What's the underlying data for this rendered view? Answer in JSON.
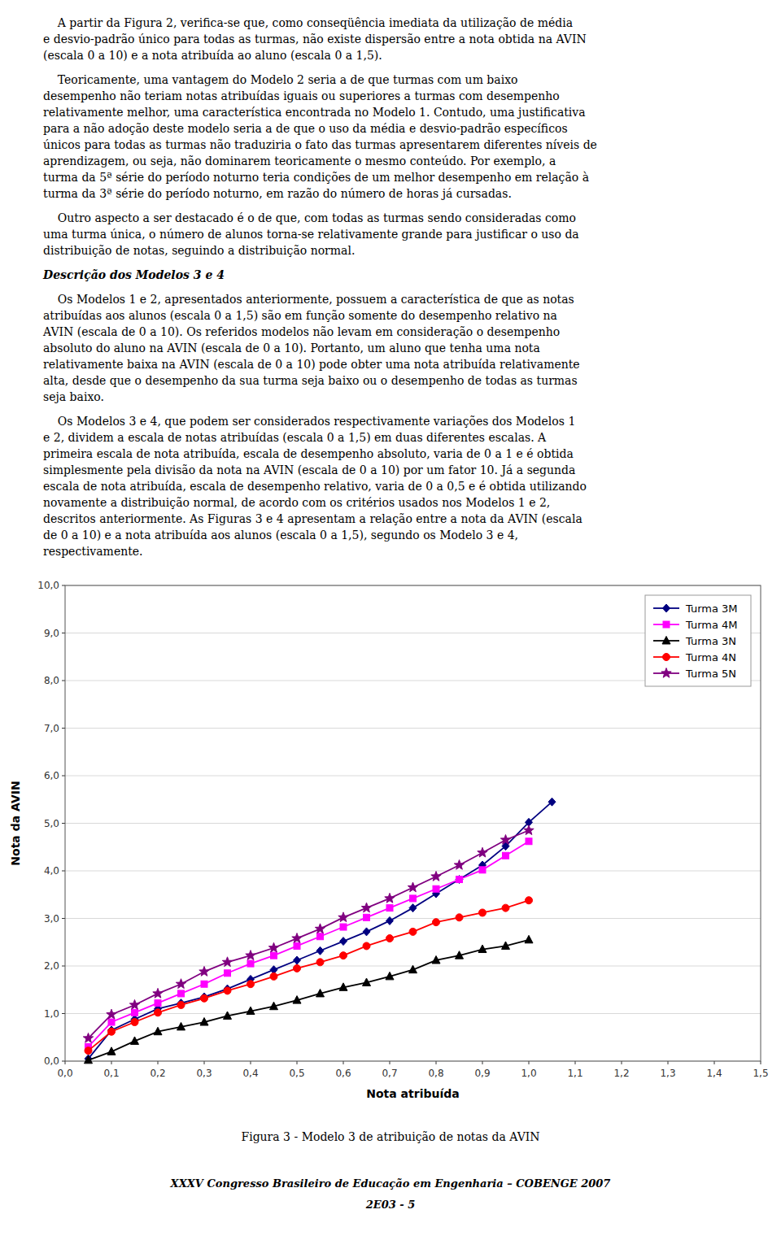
{
  "chart_data": {
    "type": "line",
    "title": "Figura 3 - Modelo 3 de atribuição de notas da AVIN",
    "x_label": "Nota atribuída",
    "y_label": "Nota da AVIN",
    "xlim": [
      0.0,
      1.5
    ],
    "ylim": [
      0.0,
      10.0
    ],
    "xticks": [
      {
        "value": 0.0,
        "label": "0,0"
      },
      {
        "value": 0.1,
        "label": "0,1"
      },
      {
        "value": 0.2,
        "label": "0,2"
      },
      {
        "value": 0.3,
        "label": "0,3"
      },
      {
        "value": 0.4,
        "label": "0,4"
      },
      {
        "value": 0.5,
        "label": "0,5"
      },
      {
        "value": 0.6,
        "label": "0,6"
      },
      {
        "value": 0.7,
        "label": "0,7"
      },
      {
        "value": 0.8,
        "label": "0,8"
      },
      {
        "value": 0.9,
        "label": "0,9"
      },
      {
        "value": 1.0,
        "label": "1,0"
      },
      {
        "value": 1.1,
        "label": "1,1"
      },
      {
        "value": 1.2,
        "label": "1,2"
      },
      {
        "value": 1.3,
        "label": "1,3"
      },
      {
        "value": 1.4,
        "label": "1,4"
      },
      {
        "value": 1.5,
        "label": "1,5"
      }
    ],
    "yticks": [
      {
        "value": 0.0,
        "label": "0,0"
      },
      {
        "value": 1.0,
        "label": "1,0"
      },
      {
        "value": 2.0,
        "label": "2,0"
      },
      {
        "value": 3.0,
        "label": "3,0"
      },
      {
        "value": 4.0,
        "label": "4,0"
      },
      {
        "value": 5.0,
        "label": "5,0"
      },
      {
        "value": 6.0,
        "label": "6,0"
      },
      {
        "value": 7.0,
        "label": "7,0"
      },
      {
        "value": 8.0,
        "label": "8,0"
      },
      {
        "value": 9.0,
        "label": "9,0"
      },
      {
        "value": 10.0,
        "label": "10,0"
      }
    ],
    "grid": "y",
    "legend": "upper right",
    "series": [
      {
        "name": "Turma 3M",
        "color": "#000080",
        "marker": "diamond",
        "x": [
          0.05,
          0.1,
          0.15,
          0.2,
          0.25,
          0.3,
          0.35,
          0.4,
          0.45,
          0.5,
          0.55,
          0.6,
          0.65,
          0.7,
          0.75,
          0.8,
          0.85,
          0.9,
          0.95,
          1.0,
          1.05
        ],
        "values": [
          0.05,
          0.65,
          0.88,
          1.1,
          1.22,
          1.35,
          1.52,
          1.72,
          1.92,
          2.12,
          2.32,
          2.52,
          2.72,
          2.95,
          3.22,
          3.52,
          3.82,
          4.12,
          4.52,
          5.02,
          5.45
        ]
      },
      {
        "name": "Turma 4M",
        "color": "#FF00FF",
        "marker": "square",
        "x": [
          0.05,
          0.1,
          0.15,
          0.2,
          0.25,
          0.3,
          0.35,
          0.4,
          0.45,
          0.5,
          0.55,
          0.6,
          0.65,
          0.7,
          0.75,
          0.8,
          0.85,
          0.9,
          0.95,
          1.0
        ],
        "values": [
          0.3,
          0.82,
          1.02,
          1.22,
          1.42,
          1.62,
          1.85,
          2.05,
          2.22,
          2.42,
          2.62,
          2.82,
          3.02,
          3.22,
          3.42,
          3.62,
          3.82,
          4.02,
          4.32,
          4.62
        ]
      },
      {
        "name": "Turma 3N",
        "color": "#000000",
        "marker": "triangle",
        "x": [
          0.05,
          0.1,
          0.15,
          0.2,
          0.25,
          0.3,
          0.35,
          0.4,
          0.45,
          0.5,
          0.55,
          0.6,
          0.65,
          0.7,
          0.75,
          0.8,
          0.85,
          0.9,
          0.95,
          1.0
        ],
        "values": [
          0.02,
          0.2,
          0.42,
          0.62,
          0.72,
          0.82,
          0.95,
          1.05,
          1.15,
          1.28,
          1.42,
          1.55,
          1.65,
          1.78,
          1.92,
          2.12,
          2.22,
          2.35,
          2.42,
          2.55
        ]
      },
      {
        "name": "Turma 4N",
        "color": "#FF0000",
        "marker": "circle",
        "x": [
          0.05,
          0.1,
          0.15,
          0.2,
          0.25,
          0.3,
          0.35,
          0.4,
          0.45,
          0.5,
          0.55,
          0.6,
          0.65,
          0.7,
          0.75,
          0.8,
          0.85,
          0.9,
          0.95,
          1.0
        ],
        "values": [
          0.22,
          0.62,
          0.82,
          1.02,
          1.18,
          1.32,
          1.48,
          1.62,
          1.78,
          1.95,
          2.08,
          2.22,
          2.42,
          2.58,
          2.72,
          2.92,
          3.02,
          3.12,
          3.22,
          3.38
        ]
      },
      {
        "name": "Turma 5N",
        "color": "#800080",
        "marker": "star",
        "x": [
          0.05,
          0.1,
          0.15,
          0.2,
          0.25,
          0.3,
          0.35,
          0.4,
          0.45,
          0.5,
          0.55,
          0.6,
          0.65,
          0.7,
          0.75,
          0.8,
          0.85,
          0.9,
          0.95,
          1.0
        ],
        "values": [
          0.48,
          0.98,
          1.18,
          1.42,
          1.62,
          1.88,
          2.08,
          2.22,
          2.38,
          2.58,
          2.78,
          3.02,
          3.22,
          3.42,
          3.65,
          3.88,
          4.12,
          4.38,
          4.65,
          4.85
        ]
      }
    ]
  },
  "page_text": {
    "paragraphs_before": [
      "    A partir da Figura 2, verifica-se que, como conseqüência imediata da utilização de média\ne desvio-padrão único para todas as turmas, não existe dispersão entre a nota obtida na AVIN\n(escala 0 a 10) e a nota atribuída ao aluno (escala 0 a 1,5).",
      "    Teoricamente, uma vantagem do Modelo 2 seria a de que turmas com um baixo\ndesempenho não teriam notas atribuídas iguais ou superiores a turmas com desempenho\nrelativamente melhor, uma característica encontrada no Modelo 1. Contudo, uma justificativa\npara a não adoção deste modelo seria a de que o uso da média e desvio-padrão específicos\núnicos para todas as turmas não traduziria o fato das turmas apresentarem diferentes níveis de\naprendizagem, ou seja, não dominarem teoricamente o mesmo conteúdo. Por exemplo, a\nturma da 5ª série do período noturno teria condições de um melhor desempenho em relação à\nturma da 3ª série do período noturno, em razão do número de horas já cursadas.",
      "    Outro aspecto a ser destacado é o de que, com todas as turmas sendo consideradas como\numa turma única, o número de alunos torna-se relativamente grande para justificar o uso da\ndistribuição de notas, seguindo a distribuição normal."
    ],
    "section_header": "Descrição dos Modelos 3 e 4",
    "paragraphs_after": [
      "    Os Modelos 1 e 2, apresentados anteriormente, possuem a característica de que as notas\natribuídas aos alunos (escala 0 a 1,5) são em função somente do desempenho relativo na\nAVIN (escala de 0 a 10). Os referidos modelos não levam em consideração o desempenho\nabsoluto do aluno na AVIN (escala de 0 a 10). Portanto, um aluno que tenha uma nota\nrelativamente baixa na AVIN (escala de 0 a 10) pode obter uma nota atribuída relativamente\nalta, desde que o desempenho da sua turma seja baixo ou o desempenho de todas as turmas\nseja baixo.",
      "    Os Modelos 3 e 4, que podem ser considerados respectivamente variações dos Modelos 1\ne 2, dividem a escala de notas atribuídas (escala 0 a 1,5) em duas diferentes escalas. A\nprimeira escala de nota atribuída, escala de desempenho absoluto, varia de 0 a 1 e é obtida\nsimplesmente pela divisão da nota na AVIN (escala de 0 a 10) por um fator 10. Já a segunda\nescala de nota atribuída, escala de desempenho relativo, varia de 0 a 0,5 e é obtida utilizando\nnovamente a distribuição normal, de acordo com os critérios usados nos Modelos 1 e 2,\ndescritos anteriormente. As Figuras 3 e 4 apresentam a relação entre a nota da AVIN (escala\nde 0 a 10) e a nota atribuída aos alunos (escala 0 a 1,5), segundo os Modelo 3 e 4,\nrespectivamente."
    ],
    "footers": [
      "XXXV Congresso Brasileiro de Educação em Engenharia – COBENGE 2007",
      "2E03 - 5"
    ]
  }
}
